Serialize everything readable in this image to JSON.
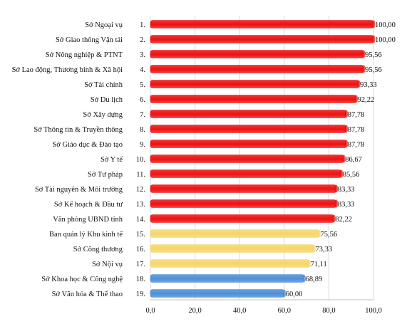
{
  "chart_data": {
    "type": "bar",
    "orientation": "horizontal",
    "categories": [
      "Sở Ngoại vụ",
      "Sở Giao thông Vận tải",
      "Sở Nông nghiệp & PTNT",
      "Sở Lao động, Thương binh & Xã hội",
      "Sở Tài chính",
      "Sở Du lịch",
      "Sở Xây dựng",
      "Sở Thông tin & Truyền thông",
      "Sở Giáo dục & Đào tạo",
      "Sở Y tế",
      "Sở Tư pháp",
      "Sở Tài nguyên & Môi trường",
      "Sở Kế hoạch & Đầu tư",
      "Văn phòng UBND tỉnh",
      "Ban quản lý Khu kinh tế",
      "Sở Công thương",
      "Sở Nội vụ",
      "Sở Khoa học & Công nghệ",
      "Sở Văn hóa & Thể thao"
    ],
    "ranks": [
      "1.",
      "2.",
      "3.",
      "4.",
      "5.",
      "6.",
      "7.",
      "8.",
      "9.",
      "10.",
      "11.",
      "12.",
      "13.",
      "14.",
      "15.",
      "16.",
      "17.",
      "18.",
      "19."
    ],
    "values": [
      100.0,
      100.0,
      95.56,
      95.56,
      93.33,
      92.22,
      87.78,
      87.78,
      87.78,
      86.67,
      85.56,
      83.33,
      83.33,
      82.22,
      75.56,
      73.33,
      71.11,
      68.89,
      60.0
    ],
    "value_labels": [
      "100,00",
      "100,00",
      "95,56",
      "95,56",
      "93,33",
      "92,22",
      "87,78",
      "87,78",
      "87,78",
      "86,67",
      "85,56",
      "83,33",
      "83,33",
      "82,22",
      "75,56",
      "73,33",
      "71,11",
      "68,89",
      "60,00"
    ],
    "bar_colors": [
      "#ee1111",
      "#ee1111",
      "#ee1111",
      "#ee1111",
      "#ee1111",
      "#ee1111",
      "#ee1111",
      "#ee1111",
      "#ee1111",
      "#ee1111",
      "#ee1111",
      "#ee1111",
      "#ee1111",
      "#ee1111",
      "#f5d66b",
      "#f5d66b",
      "#f5d66b",
      "#4f8fd8",
      "#4f8fd8"
    ],
    "xlim": [
      0,
      100
    ],
    "xticks": [
      0,
      20,
      40,
      60,
      80,
      100
    ],
    "xtick_labels": [
      "0,0",
      "20,0",
      "40,0",
      "60,0",
      "80,0",
      "100,0"
    ],
    "grid": true,
    "title": "",
    "xlabel": "",
    "ylabel": ""
  }
}
